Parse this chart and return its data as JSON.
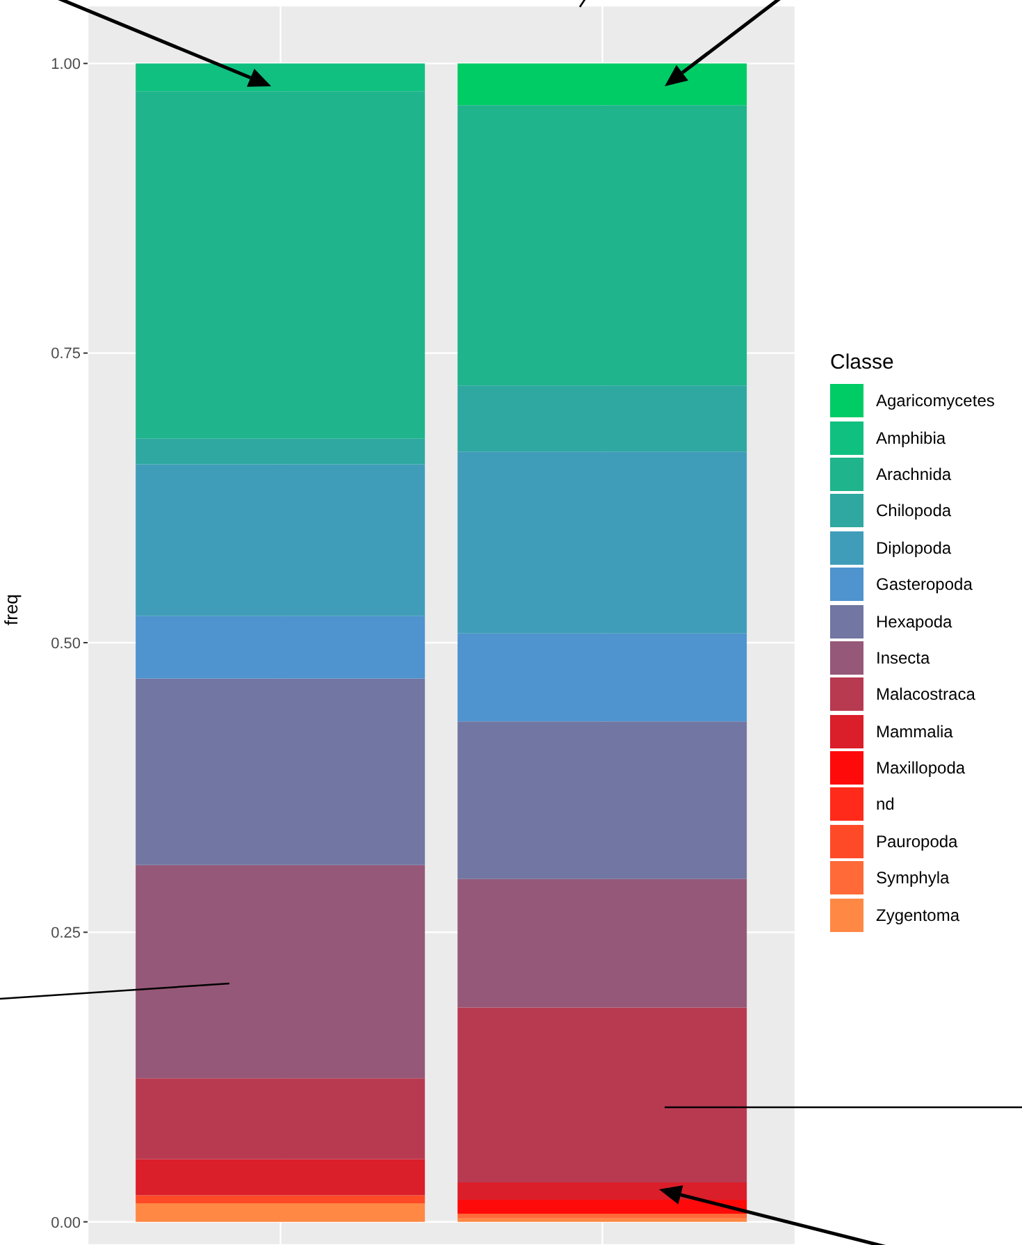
{
  "chart_data": {
    "type": "bar",
    "stacked": true,
    "ylabel": "freq",
    "legend_title": "Classe",
    "legend": "right",
    "grid": true,
    "categories": [
      null,
      null
    ],
    "ylim": [
      -0.02,
      1.05
    ],
    "yticks": [
      {
        "value": 0,
        "label": "0.00"
      },
      {
        "value": 0.25,
        "label": "0.25"
      },
      {
        "value": 0.5,
        "label": "0.50"
      },
      {
        "value": 0.75,
        "label": "0.75"
      },
      {
        "value": 1,
        "label": "1.00"
      }
    ],
    "series": [
      {
        "name": "Zygentoma",
        "color": "#ff8844",
        "values": [
          0.016,
          0.003
        ]
      },
      {
        "name": "Symphyla",
        "color": "#ff6a38",
        "values": [
          0,
          0.004
        ]
      },
      {
        "name": "Pauropoda",
        "color": "#ff4a28",
        "values": [
          0.007,
          0
        ]
      },
      {
        "name": "nd",
        "color": "#ff2a1a",
        "values": [
          0,
          0
        ]
      },
      {
        "name": "Maxillopoda",
        "color": "#ff0a0a",
        "values": [
          0,
          0.012
        ]
      },
      {
        "name": "Mammalia",
        "color": "#da1e2a",
        "values": [
          0.031,
          0.015
        ]
      },
      {
        "name": "Malacostraca",
        "color": "#b83a51",
        "values": [
          0.07,
          0.151
        ]
      },
      {
        "name": "Insecta",
        "color": "#965878",
        "values": [
          0.184,
          0.111
        ]
      },
      {
        "name": "Hexapoda",
        "color": "#7176a2",
        "values": [
          0.161,
          0.136
        ]
      },
      {
        "name": "Gasteropoda",
        "color": "#4f93cf",
        "values": [
          0.054,
          0.076
        ]
      },
      {
        "name": "Diplopoda",
        "color": "#409dba",
        "values": [
          0.131,
          0.157
        ]
      },
      {
        "name": "Chilopoda",
        "color": "#2ea8a0",
        "values": [
          0.022,
          0.057
        ]
      },
      {
        "name": "Arachnida",
        "color": "#20b48c",
        "values": [
          0.3,
          0.242
        ]
      },
      {
        "name": "Amphibia",
        "color": "#10c080",
        "values": [
          0.024,
          0
        ]
      },
      {
        "name": "Agaricomycetes",
        "color": "#00cc66",
        "values": [
          0,
          0.036
        ]
      }
    ]
  }
}
